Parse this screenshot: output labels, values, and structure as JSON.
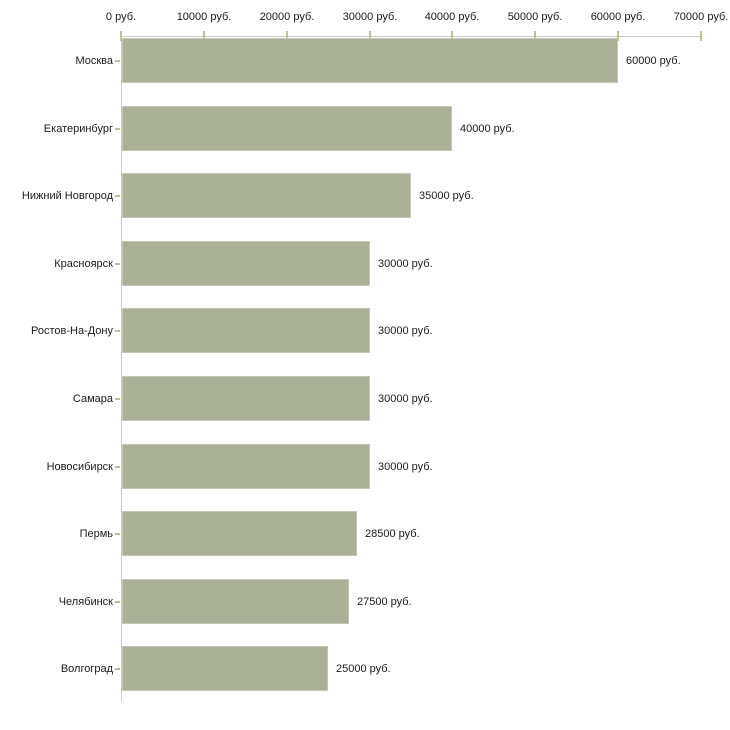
{
  "chart_data": {
    "type": "bar",
    "orientation": "horizontal",
    "categories": [
      "Москва",
      "Екатеринбург",
      "Нижний Новгород",
      "Красноярск",
      "Ростов-На-Дону",
      "Самара",
      "Новосибирск",
      "Пермь",
      "Челябинск",
      "Волгоград"
    ],
    "values": [
      60000,
      40000,
      35000,
      30000,
      30000,
      30000,
      30000,
      28500,
      27500,
      25000
    ],
    "value_labels": [
      "60000 руб.",
      "40000 руб.",
      "35000 руб.",
      "30000 руб.",
      "30000 руб.",
      "30000 руб.",
      "30000 руб.",
      "28500 руб.",
      "27500 руб.",
      "25000 руб."
    ],
    "x_ticks": [
      0,
      10000,
      20000,
      30000,
      40000,
      50000,
      60000,
      70000
    ],
    "x_tick_labels": [
      "0 руб.",
      "10000 руб.",
      "20000 руб.",
      "30000 руб.",
      "40000 руб.",
      "50000 руб.",
      "60000 руб.",
      "70000 руб."
    ],
    "xlim": [
      0,
      70000
    ],
    "unit": "руб.",
    "grid": false,
    "legend": false,
    "colors": {
      "bar": "#abb199",
      "bar_border": "#c3c7b5",
      "axis_line": "#c9c9c5",
      "tick_mark": "#bfbf8f",
      "text": "#1a1a1a",
      "background": "#ffffff"
    }
  }
}
